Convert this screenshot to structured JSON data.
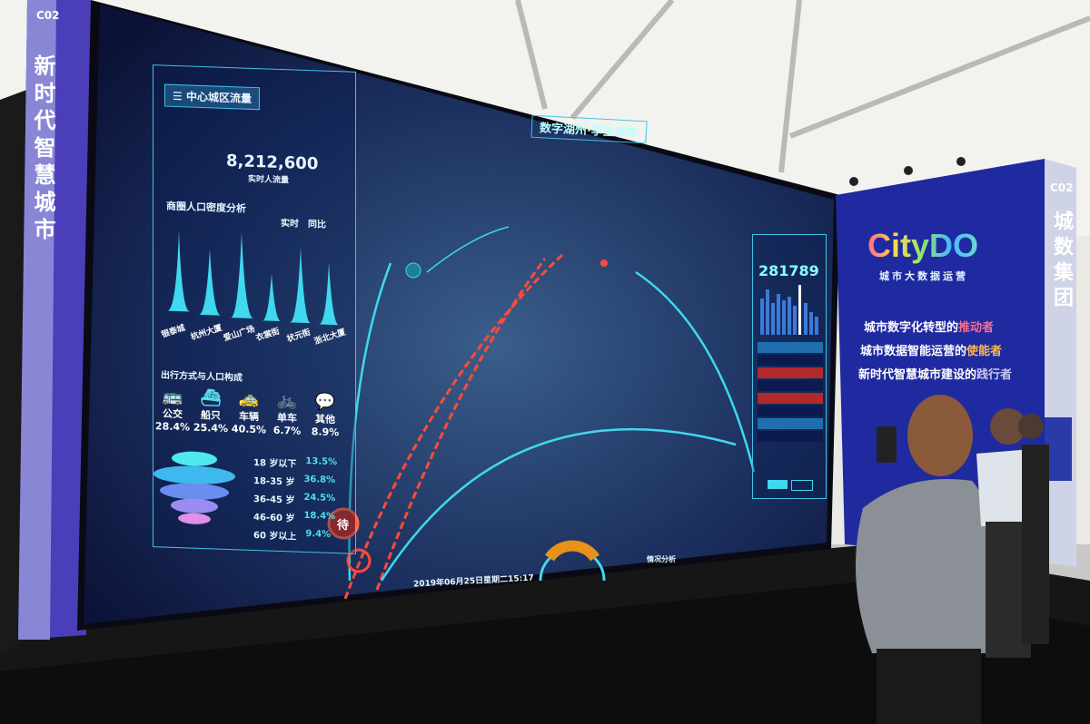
{
  "left_pillar": {
    "code": "C02",
    "slogan": "新时代智慧城市"
  },
  "screen": {
    "title": "数字湖州·孪生城市",
    "left_panel": {
      "header": "中心城区流量",
      "flow_value": "8,212,600",
      "flow_label": "实时人流量",
      "density_title": "商圈人口密度分析",
      "legend": [
        "实时",
        "同比"
      ],
      "density_places": [
        "银泰城",
        "杭州大厦",
        "爱山广场",
        "衣裳街",
        "状元街",
        "浙北大厦"
      ],
      "travel_title": "出行方式与人口构成",
      "travel_modes": [
        {
          "label": "公交",
          "value": "28.4%",
          "icon": "bus-icon"
        },
        {
          "label": "船只",
          "value": "25.4%",
          "icon": "ship-icon"
        },
        {
          "label": "车辆",
          "value": "40.5%",
          "icon": "car-icon"
        },
        {
          "label": "单车",
          "value": "6.7%",
          "icon": "bicycle-icon"
        },
        {
          "label": "其他",
          "value": "8.9%",
          "icon": "chat-bubble-icon"
        }
      ],
      "age_groups": [
        {
          "label": "18 岁以下",
          "value": "13.5%"
        },
        {
          "label": "18-35 岁",
          "value": "36.8%"
        },
        {
          "label": "36-45 岁",
          "value": "24.5%"
        },
        {
          "label": "46-60 岁",
          "value": "18.4%"
        },
        {
          "label": "60 岁以上",
          "value": "9.4%"
        }
      ]
    },
    "right_panel": {
      "count": "281789"
    },
    "badge": "待",
    "datetime": "2019年06月25日星期二15:17",
    "bottom_right_label": "情况分析",
    "colors": {
      "cyan": "#3fd8ee",
      "red": "#ff4a3a",
      "orange": "#e8921a"
    }
  },
  "booth": {
    "brand": "CityDO",
    "brand_sub": "城市大数据运营",
    "taglines": [
      {
        "prefix": "城市数字化转型的",
        "highlight": "推动者"
      },
      {
        "prefix": "城市数据智能运营的",
        "highlight": "使能者"
      },
      {
        "prefix": "新时代智慧城市建设的",
        "highlight": "践行者"
      }
    ],
    "pillar_code": "C02",
    "pillar_name": "城数集团"
  }
}
